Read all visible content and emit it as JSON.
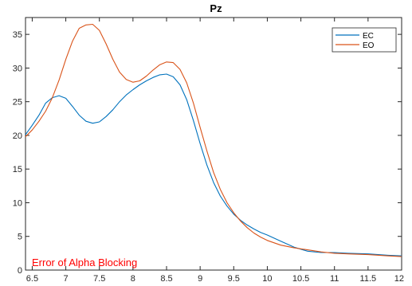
{
  "chart_data": {
    "type": "line",
    "title": "Pz",
    "xlabel": "",
    "ylabel": "",
    "xlim": [
      6.4,
      12
    ],
    "ylim": [
      0,
      37.5
    ],
    "x_ticks": [
      6.5,
      7,
      7.5,
      8,
      8.5,
      9,
      9.5,
      10,
      10.5,
      11,
      11.5,
      12
    ],
    "x_tick_labels": [
      "6.5",
      "7",
      "7.5",
      "8",
      "8.5",
      "9",
      "9.5",
      "10",
      "10.5",
      "11",
      "11.5",
      "12"
    ],
    "y_ticks": [
      0,
      5,
      10,
      15,
      20,
      25,
      30,
      35
    ],
    "y_tick_labels": [
      "0",
      "5",
      "10",
      "15",
      "20",
      "25",
      "30",
      "35"
    ],
    "grid": false,
    "legend_position": "top-right",
    "annotation": "Error of Alpha Blocking",
    "annotation_color": "#ff0000",
    "series": [
      {
        "name": "EC",
        "color": "#0072bd",
        "points": [
          [
            6.4,
            20.1
          ],
          [
            6.5,
            21.5
          ],
          [
            6.6,
            23.0
          ],
          [
            6.7,
            24.8
          ],
          [
            6.8,
            25.6
          ],
          [
            6.9,
            25.9
          ],
          [
            7.0,
            25.5
          ],
          [
            7.1,
            24.3
          ],
          [
            7.2,
            23.0
          ],
          [
            7.3,
            22.1
          ],
          [
            7.4,
            21.8
          ],
          [
            7.5,
            22.0
          ],
          [
            7.6,
            22.8
          ],
          [
            7.7,
            23.8
          ],
          [
            7.8,
            25.0
          ],
          [
            7.9,
            26.0
          ],
          [
            8.0,
            26.8
          ],
          [
            8.1,
            27.5
          ],
          [
            8.2,
            28.1
          ],
          [
            8.3,
            28.6
          ],
          [
            8.4,
            29.0
          ],
          [
            8.5,
            29.1
          ],
          [
            8.6,
            28.7
          ],
          [
            8.7,
            27.5
          ],
          [
            8.8,
            25.3
          ],
          [
            8.9,
            22.2
          ],
          [
            9.0,
            18.8
          ],
          [
            9.1,
            15.6
          ],
          [
            9.2,
            13.0
          ],
          [
            9.3,
            11.0
          ],
          [
            9.4,
            9.5
          ],
          [
            9.5,
            8.3
          ],
          [
            9.6,
            7.4
          ],
          [
            9.7,
            6.7
          ],
          [
            9.8,
            6.1
          ],
          [
            9.9,
            5.6
          ],
          [
            10.0,
            5.2
          ],
          [
            10.2,
            4.3
          ],
          [
            10.4,
            3.4
          ],
          [
            10.6,
            2.8
          ],
          [
            10.8,
            2.6
          ],
          [
            11.0,
            2.6
          ],
          [
            11.2,
            2.5
          ],
          [
            11.5,
            2.4
          ],
          [
            11.8,
            2.2
          ],
          [
            12.0,
            2.1
          ]
        ]
      },
      {
        "name": "EO",
        "color": "#d95319",
        "points": [
          [
            6.4,
            19.8
          ],
          [
            6.5,
            20.8
          ],
          [
            6.6,
            22.1
          ],
          [
            6.7,
            23.6
          ],
          [
            6.8,
            25.6
          ],
          [
            6.9,
            28.2
          ],
          [
            7.0,
            31.3
          ],
          [
            7.1,
            34.0
          ],
          [
            7.2,
            35.9
          ],
          [
            7.3,
            36.4
          ],
          [
            7.4,
            36.5
          ],
          [
            7.5,
            35.6
          ],
          [
            7.6,
            33.6
          ],
          [
            7.7,
            31.3
          ],
          [
            7.8,
            29.4
          ],
          [
            7.9,
            28.3
          ],
          [
            8.0,
            27.9
          ],
          [
            8.1,
            28.1
          ],
          [
            8.2,
            28.8
          ],
          [
            8.3,
            29.7
          ],
          [
            8.4,
            30.5
          ],
          [
            8.5,
            30.9
          ],
          [
            8.6,
            30.8
          ],
          [
            8.7,
            29.8
          ],
          [
            8.8,
            27.8
          ],
          [
            8.9,
            24.8
          ],
          [
            9.0,
            21.2
          ],
          [
            9.1,
            17.7
          ],
          [
            9.2,
            14.5
          ],
          [
            9.3,
            12.0
          ],
          [
            9.4,
            10.0
          ],
          [
            9.5,
            8.5
          ],
          [
            9.6,
            7.3
          ],
          [
            9.7,
            6.3
          ],
          [
            9.8,
            5.5
          ],
          [
            9.9,
            4.9
          ],
          [
            10.0,
            4.4
          ],
          [
            10.2,
            3.7
          ],
          [
            10.4,
            3.3
          ],
          [
            10.6,
            3.0
          ],
          [
            10.8,
            2.7
          ],
          [
            11.0,
            2.5
          ],
          [
            11.2,
            2.4
          ],
          [
            11.5,
            2.3
          ],
          [
            11.8,
            2.1
          ],
          [
            12.0,
            2.0
          ]
        ]
      }
    ]
  }
}
